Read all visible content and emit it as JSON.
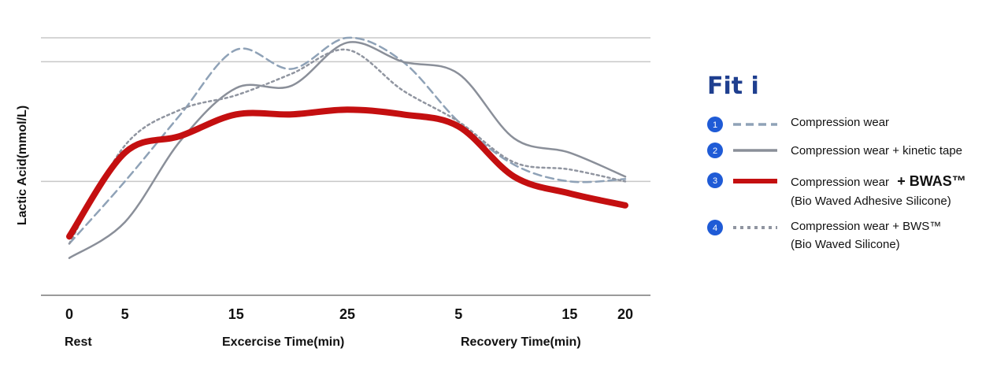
{
  "brand": {
    "logo_text": "Fit i",
    "accent": "#1f3f8f"
  },
  "chart_data": {
    "type": "line",
    "title": "",
    "xlabel": "",
    "ylabel": "Lactic Acid(mmol/L)",
    "x_tick_labels": [
      "0",
      "5",
      "15",
      "25",
      "5",
      "15",
      "20"
    ],
    "phase_labels": [
      {
        "text": "Rest"
      },
      {
        "text": "Excercise Time(min)"
      },
      {
        "text": "Recovery Time(min)"
      }
    ],
    "x_positions": [
      0,
      5,
      10,
      15,
      20,
      25,
      30,
      35,
      40,
      45,
      50
    ],
    "tick_positions": [
      0,
      5,
      15,
      25,
      35,
      45,
      50
    ],
    "xlim": [
      0,
      50
    ],
    "ylim": [
      0,
      100
    ],
    "y_gridlines": [
      100,
      90,
      40
    ],
    "series": [
      {
        "name": "Compression wear",
        "number": "1",
        "style": "dashed",
        "color": "#8fa2b7",
        "values": [
          14,
          40,
          68,
          95,
          87,
          100,
          90,
          65,
          47,
          40,
          41
        ]
      },
      {
        "name": "Compression wear + kinetic tape",
        "number": "2",
        "style": "solid",
        "color": "#8a8f99",
        "values": [
          8,
          23,
          57,
          79,
          80,
          98,
          90,
          85,
          58,
          52,
          42
        ]
      },
      {
        "name": "Compression wear + BWAS™",
        "legend_main": "Compression wear",
        "legend_emphasis": "+ BWAS™",
        "legend_note": "(Bio Waved Adhesive Silicone)",
        "number": "3",
        "style": "bold",
        "color": "#c40f10",
        "values": [
          17,
          52,
          59,
          68,
          68,
          70,
          68,
          63,
          42,
          35,
          30
        ]
      },
      {
        "name": "Compression wear + BWS™",
        "legend_main": "Compression wear + BWS™",
        "legend_note": "(Bio Waved Silicone)",
        "number": "4",
        "style": "dotted",
        "color": "#9095a0",
        "values": [
          14,
          55,
          70,
          76,
          85,
          95,
          78,
          65,
          48,
          45,
          40
        ]
      }
    ]
  }
}
